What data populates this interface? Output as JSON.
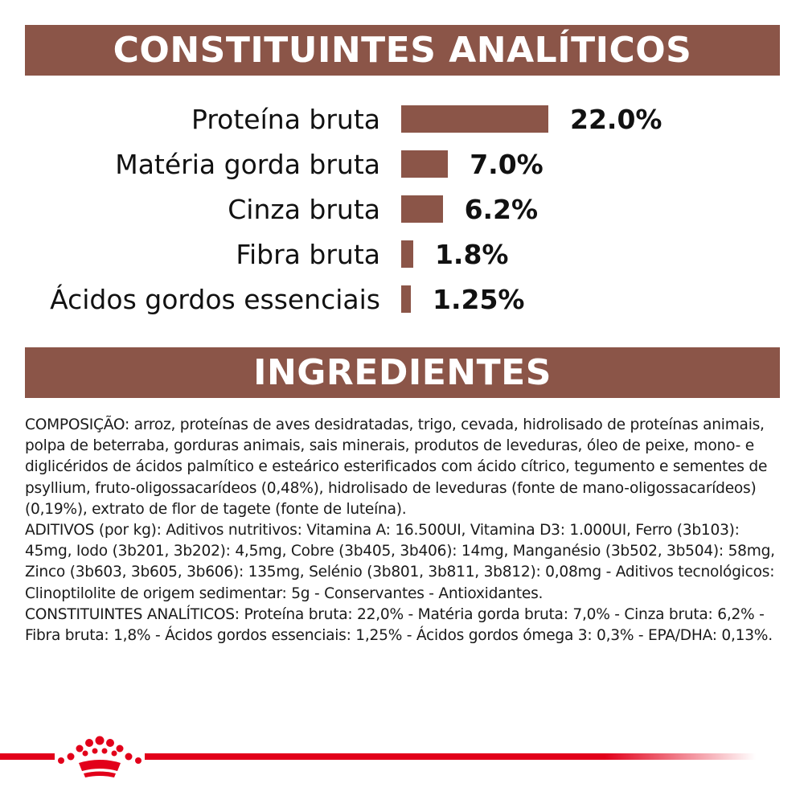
{
  "banners": {
    "analytics": "CONSTITUINTES ANALÍTICOS",
    "ingredients": "INGREDIENTES"
  },
  "colors": {
    "banner": "#8b5548",
    "bar": "#8b5548",
    "brand_red": "#e2001a"
  },
  "chart_data": {
    "type": "bar",
    "orientation": "horizontal",
    "title": "CONSTITUINTES ANALÍTICOS",
    "categories": [
      "Proteína bruta",
      "Matéria gorda bruta",
      "Cinza bruta",
      "Fibra bruta",
      "Ácidos gordos essenciais"
    ],
    "values": [
      22.0,
      7.0,
      6.2,
      1.8,
      1.25
    ],
    "value_labels": [
      "22.0%",
      "7.0%",
      "6.2%",
      "1.8%",
      "1.25%"
    ],
    "unit": "%",
    "grid": false,
    "legend": "none"
  },
  "ingredients": {
    "paragraphs": [
      "COMPOSIÇÃO: arroz, proteínas de aves desidratadas, trigo, cevada, hidrolisado de proteínas animais, polpa de beterraba, gorduras animais, sais minerais, produtos de leveduras, óleo de peixe, mono- e diglicéridos de ácidos palmítico e esteárico esterificados com ácido cítrico, tegumento e sementes de psyllium, fruto-oligossacarídeos (0,48%), hidrolisado de leveduras (fonte de mano-oligossacarídeos) (0,19%), extrato de flor de tagete (fonte de luteína).",
      "ADITIVOS (por kg): Aditivos nutritivos: Vitamina A: 16.500UI, Vitamina D3: 1.000UI, Ferro (3b103): 45mg, Iodo (3b201, 3b202): 4,5mg, Cobre (3b405, 3b406): 14mg, Manganésio (3b502, 3b504): 58mg, Zinco (3b603, 3b605, 3b606): 135mg, Selénio (3b801, 3b811, 3b812): 0,08mg - Aditivos tecnológicos: Clinoptilolite de origem sedimentar: 5g - Conservantes - Antioxidantes.",
      "CONSTITUINTES ANALÍTICOS: Proteína bruta: 22,0% - Matéria gorda bruta: 7,0% - Cinza bruta: 6,2% - Fibra bruta: 1,8% - Ácidos gordos essenciais: 1,25% - Ácidos gordos ómega 3: 0,3% - EPA/DHA: 0,13%."
    ]
  },
  "footer": {
    "logo_icon": "crown-icon"
  }
}
